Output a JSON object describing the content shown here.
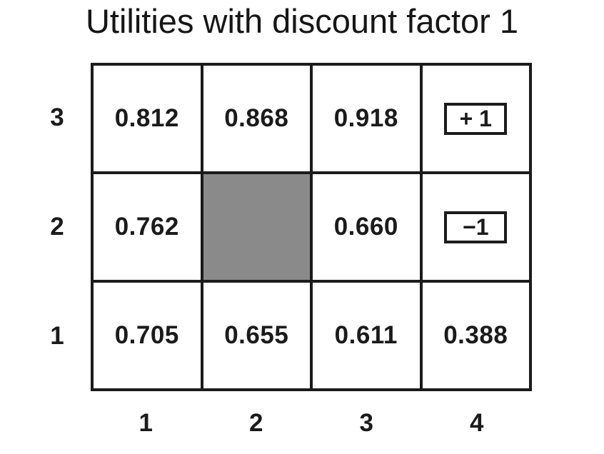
{
  "title": "Utilities with discount factor 1",
  "grid": {
    "row_labels": [
      "3",
      "2",
      "1"
    ],
    "col_labels": [
      "1",
      "2",
      "3",
      "4"
    ],
    "rows": [
      [
        {
          "type": "value",
          "text": "0.812"
        },
        {
          "type": "value",
          "text": "0.868"
        },
        {
          "type": "value",
          "text": "0.918"
        },
        {
          "type": "terminal",
          "text": "+ 1"
        }
      ],
      [
        {
          "type": "value",
          "text": "0.762"
        },
        {
          "type": "wall",
          "text": ""
        },
        {
          "type": "value",
          "text": "0.660"
        },
        {
          "type": "terminal",
          "text": "−1"
        }
      ],
      [
        {
          "type": "value",
          "text": "0.705"
        },
        {
          "type": "value",
          "text": "0.655"
        },
        {
          "type": "value",
          "text": "0.611"
        },
        {
          "type": "value",
          "text": "0.388"
        }
      ]
    ],
    "colors": {
      "wall": "#8a8a8a",
      "line": "#1b1b1b",
      "background": "#ffffff",
      "text": "#1b1b1b"
    }
  },
  "chart_data": {
    "type": "heatmap",
    "title": "Utilities with discount factor 1",
    "x_ticks": [
      "1",
      "2",
      "3",
      "4"
    ],
    "y_ticks": [
      "3",
      "2",
      "1"
    ],
    "values_rows_top_to_bottom": [
      [
        0.812,
        0.868,
        0.918,
        "+1"
      ],
      [
        0.762,
        null,
        0.66,
        "-1"
      ],
      [
        0.705,
        0.655,
        0.611,
        0.388
      ]
    ]
  }
}
